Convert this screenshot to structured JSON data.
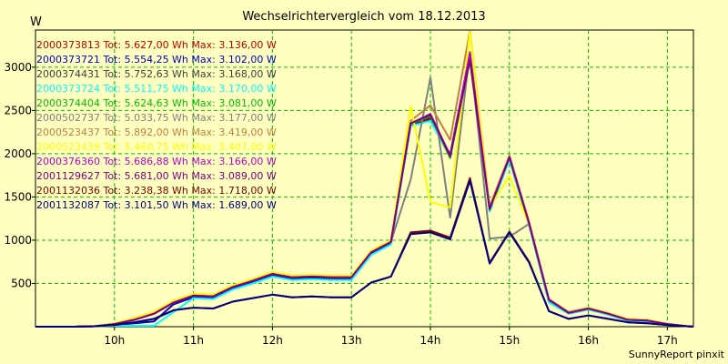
{
  "chart_data": {
    "type": "line",
    "title": "Wechselrichtervergleich vom 18.12.2013",
    "ylabel": "W",
    "credit": "SunnyReport pinxit",
    "x_tick_labels": [
      "10h",
      "11h",
      "12h",
      "13h",
      "14h",
      "15h",
      "16h",
      "17h"
    ],
    "x_tick_values": [
      10,
      11,
      12,
      13,
      14,
      15,
      16,
      17
    ],
    "y_tick_labels": [
      "500",
      "1000",
      "1500",
      "2000",
      "2500",
      "3000"
    ],
    "y_tick_values": [
      500,
      1000,
      1500,
      2000,
      2500,
      3000
    ],
    "xlim": [
      9,
      17.33
    ],
    "ylim": [
      0,
      3430
    ],
    "grid": true,
    "legend_position": "top-left",
    "x": [
      9,
      9.25,
      9.5,
      9.75,
      10,
      10.25,
      10.5,
      10.75,
      11,
      11.25,
      11.5,
      11.75,
      12,
      12.25,
      12.5,
      12.75,
      13,
      13.25,
      13.5,
      13.75,
      14,
      14.25,
      14.5,
      14.75,
      15,
      15.25,
      15.5,
      15.75,
      16,
      16.25,
      16.5,
      16.75,
      17,
      17.25,
      17.33
    ],
    "series": [
      {
        "name": "2000373813 Tot: 5.627,00 Wh Max: 3.136,00 W",
        "color": "#C00000",
        "values": [
          0,
          0,
          0,
          5,
          30,
          80,
          150,
          280,
          360,
          350,
          460,
          530,
          610,
          570,
          580,
          570,
          570,
          860,
          980,
          2340,
          2400,
          1980,
          3136,
          1360,
          1950,
          1180,
          300,
          160,
          210,
          150,
          80,
          70,
          30,
          5,
          0
        ]
      },
      {
        "name": "2000373721 Tot: 5.554,25 Wh Max: 3.102,00 W",
        "color": "#0000C0",
        "values": [
          0,
          0,
          0,
          5,
          20,
          40,
          60,
          260,
          340,
          330,
          440,
          510,
          590,
          550,
          560,
          550,
          550,
          840,
          960,
          2330,
          2380,
          1970,
          3102,
          1340,
          1940,
          1170,
          290,
          150,
          200,
          140,
          70,
          60,
          25,
          5,
          0
        ]
      },
      {
        "name": "2000374431 Tot: 5.752,63 Wh Max: 3.168,00 W",
        "color": "#404040",
        "values": [
          0,
          0,
          0,
          5,
          30,
          90,
          160,
          290,
          370,
          360,
          470,
          540,
          620,
          580,
          590,
          580,
          580,
          870,
          990,
          2350,
          2420,
          1990,
          3168,
          1370,
          1960,
          1190,
          310,
          160,
          210,
          150,
          80,
          70,
          30,
          5,
          0
        ]
      },
      {
        "name": "2000373724 Tot: 5.511,75 Wh Max: 3.170,00 W",
        "color": "#00FFFF",
        "values": [
          0,
          0,
          0,
          5,
          10,
          10,
          10,
          170,
          330,
          320,
          430,
          500,
          580,
          540,
          550,
          540,
          540,
          830,
          950,
          2320,
          2380,
          1960,
          3170,
          1330,
          1930,
          1160,
          280,
          150,
          200,
          140,
          70,
          60,
          25,
          5,
          0
        ]
      },
      {
        "name": "2000374404 Tot: 5.624,63 Wh Max: 3.081,00 W",
        "color": "#00C000",
        "values": [
          0,
          0,
          0,
          5,
          30,
          80,
          150,
          280,
          360,
          350,
          460,
          530,
          610,
          570,
          580,
          570,
          570,
          860,
          980,
          2340,
          2440,
          1950,
          3081,
          1350,
          1960,
          1190,
          310,
          160,
          210,
          150,
          80,
          70,
          30,
          5,
          0
        ]
      },
      {
        "name": "2000502737 Tot: 5.033,75 Wh Max: 3.177,00 W",
        "color": "#808080",
        "values": [
          0,
          0,
          0,
          5,
          30,
          80,
          150,
          280,
          360,
          350,
          460,
          530,
          610,
          570,
          580,
          570,
          570,
          860,
          980,
          1700,
          2880,
          1260,
          3177,
          1020,
          1040,
          1190,
          310,
          160,
          210,
          150,
          80,
          70,
          30,
          5,
          0
        ]
      },
      {
        "name": "2000523437 Tot: 5.892,00 Wh Max: 3.419,00 W",
        "color": "#C08040",
        "values": [
          0,
          0,
          0,
          5,
          40,
          100,
          170,
          300,
          380,
          370,
          480,
          550,
          630,
          590,
          600,
          590,
          590,
          880,
          1000,
          2380,
          2560,
          2160,
          3419,
          1390,
          1980,
          1210,
          320,
          170,
          220,
          160,
          90,
          80,
          35,
          5,
          0
        ]
      },
      {
        "name": "2000523439 Tot: 5.460,75 Wh Max: 3.407,00 W",
        "color": "#FFFF00",
        "values": [
          0,
          0,
          0,
          5,
          40,
          100,
          170,
          300,
          380,
          370,
          480,
          550,
          630,
          590,
          600,
          590,
          590,
          880,
          1000,
          2550,
          1440,
          1380,
          3407,
          1380,
          1740,
          1180,
          310,
          160,
          220,
          160,
          90,
          80,
          35,
          5,
          0
        ]
      },
      {
        "name": "2000376360 Tot: 5.686,88 Wh Max: 3.166,00 W",
        "color": "#C000C0",
        "values": [
          0,
          0,
          0,
          5,
          30,
          80,
          150,
          280,
          360,
          350,
          460,
          530,
          610,
          570,
          580,
          570,
          570,
          860,
          980,
          2350,
          2460,
          1980,
          3166,
          1360,
          1960,
          1190,
          310,
          160,
          210,
          150,
          80,
          70,
          30,
          5,
          0
        ]
      },
      {
        "name": "2001129627 Tot: 5.681,00 Wh Max: 3.089,00 W",
        "color": "#800080",
        "values": [
          0,
          0,
          0,
          5,
          30,
          80,
          150,
          280,
          360,
          350,
          460,
          530,
          610,
          570,
          580,
          570,
          570,
          860,
          980,
          2350,
          2450,
          1970,
          3089,
          1360,
          1960,
          1190,
          310,
          160,
          210,
          150,
          80,
          70,
          30,
          5,
          0
        ]
      },
      {
        "name": "2001132036 Tot: 3.238,38 Wh Max: 1.718,00 W",
        "color": "#800000",
        "values": [
          0,
          0,
          0,
          5,
          20,
          50,
          90,
          190,
          220,
          210,
          290,
          330,
          370,
          340,
          350,
          340,
          340,
          510,
          580,
          1090,
          1110,
          1030,
          1718,
          740,
          1100,
          750,
          180,
          90,
          130,
          90,
          50,
          40,
          20,
          5,
          0
        ]
      },
      {
        "name": "2001132087 Tot: 3.101,50 Wh Max: 1.689,00 W",
        "color": "#000080",
        "values": [
          0,
          0,
          0,
          5,
          20,
          50,
          90,
          190,
          220,
          210,
          290,
          330,
          370,
          340,
          350,
          340,
          340,
          510,
          580,
          1070,
          1090,
          1010,
          1689,
          730,
          1090,
          740,
          180,
          90,
          130,
          90,
          50,
          40,
          20,
          5,
          0
        ]
      }
    ]
  }
}
